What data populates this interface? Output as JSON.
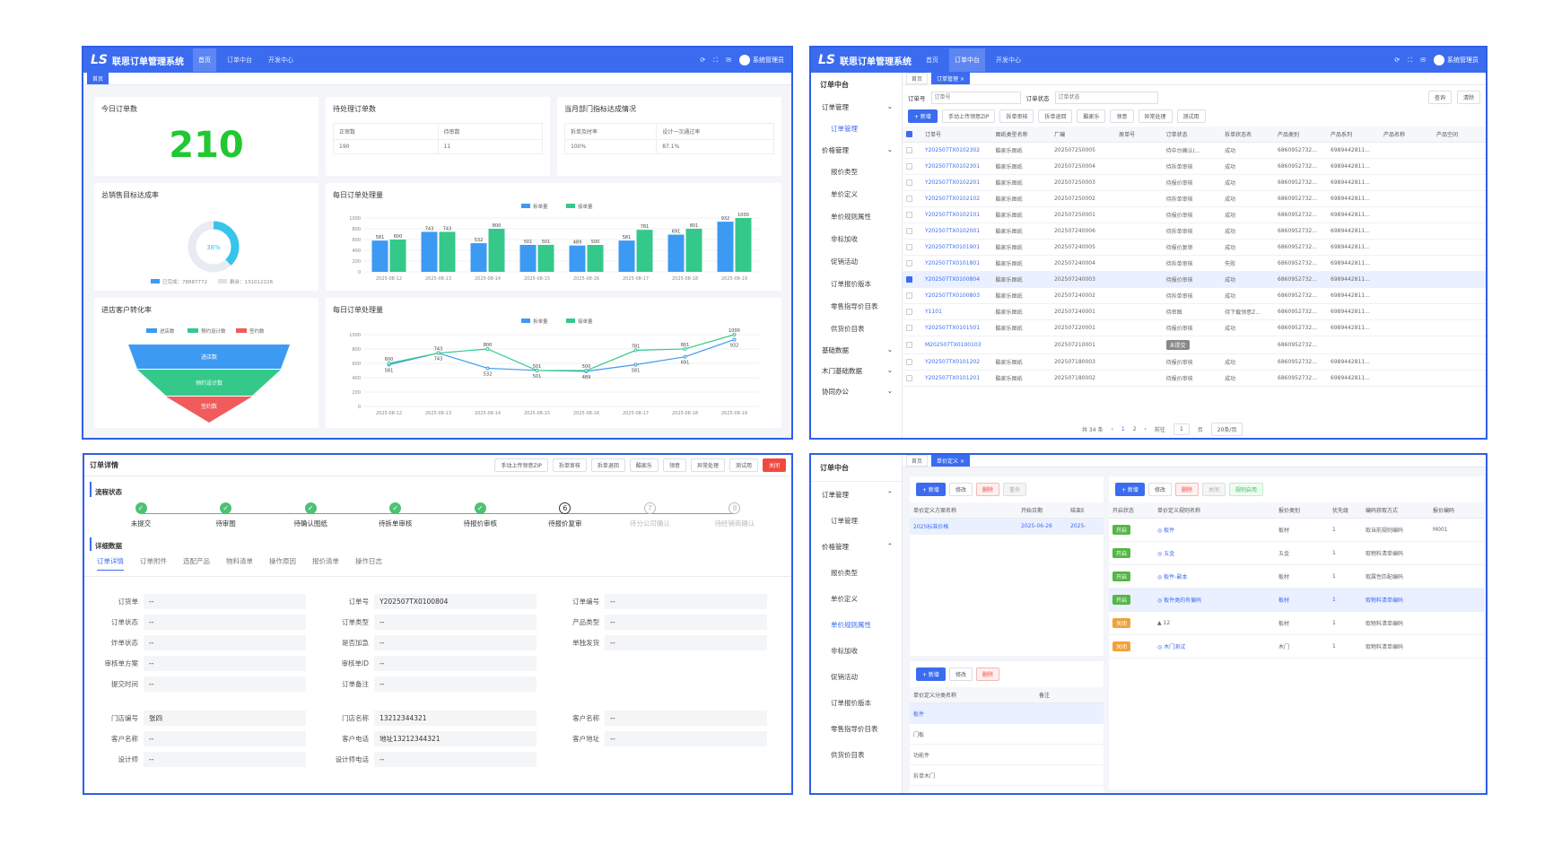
{
  "app": {
    "title": "联思订单管理系统",
    "logo": "LS",
    "user": "系统管理员",
    "nav": [
      "首页",
      "订单中台",
      "开发中心"
    ]
  },
  "p1": {
    "tab": "首页",
    "today": {
      "title": "今日订单数",
      "value": "210"
    },
    "pending": {
      "title": "待处理订单数",
      "h1": "正审数",
      "h2": "待审数",
      "v1": "190",
      "v2": "11"
    },
    "monthly": {
      "title": "当月部门指标达成情况",
      "h1": "拆单及时率",
      "h2": "设计一次通过率",
      "v1": "100%",
      "v2": "87.1%"
    },
    "rate": {
      "title": "总销售目标达成率",
      "pct": "38%",
      "legend1": "已完成：78887772",
      "legend2": "剩余：131012228"
    },
    "conv": {
      "title": "进店客户转化率",
      "legend": [
        "进店数",
        "预约设计数",
        "签约数"
      ],
      "labels": [
        "进店数",
        "预约设计数",
        "签约数"
      ]
    },
    "bar": {
      "title": "每日订单处理量"
    },
    "line": {
      "title": "每日订单处理量"
    }
  },
  "chart_data": [
    {
      "type": "bar",
      "title": "每日订单处理量",
      "categories": [
        "2025-08-12",
        "2025-08-13",
        "2025-08-14",
        "2025-08-15",
        "2025-08-16",
        "2025-08-17",
        "2025-08-18",
        "2025-08-19"
      ],
      "series": [
        {
          "name": "拆单量",
          "values": [
            581,
            743,
            532,
            501,
            489,
            581,
            691,
            932
          ]
        },
        {
          "name": "接单量",
          "values": [
            600,
            743,
            800,
            501,
            500,
            781,
            801,
            1000
          ]
        }
      ],
      "ylim": [
        0,
        1000
      ],
      "yticks": [
        0,
        200,
        400,
        600,
        800,
        1000
      ],
      "colors": [
        "#3c9af3",
        "#34c98a"
      ]
    },
    {
      "type": "line",
      "title": "每日订单处理量",
      "categories": [
        "2025-08-12",
        "2025-08-13",
        "2025-08-14",
        "2025-08-15",
        "2025-08-16",
        "2025-08-17",
        "2025-08-18",
        "2025-08-19"
      ],
      "series": [
        {
          "name": "拆单量",
          "values": [
            581,
            743,
            532,
            501,
            489,
            581,
            691,
            932
          ]
        },
        {
          "name": "接单量",
          "values": [
            600,
            743,
            800,
            501,
            500,
            781,
            801,
            1000
          ]
        }
      ],
      "ylim": [
        0,
        1000
      ],
      "yticks": [
        0,
        200,
        400,
        600,
        800,
        1000
      ],
      "colors": [
        "#3c9af3",
        "#34c98a"
      ]
    }
  ],
  "p2": {
    "side_title": "订单中台",
    "menu": [
      {
        "g": "订单管理",
        "items": [
          "订单管理"
        ]
      },
      {
        "g": "价格管理",
        "items": [
          "报价类型",
          "单价定义",
          "单价规则属性",
          "非标加收",
          "促销活动",
          "订单报价版本",
          "零售指导价目表",
          "供货价目表"
        ]
      },
      {
        "g": "基础数据",
        "items": []
      },
      {
        "g": "木门基础数据",
        "items": []
      },
      {
        "g": "协同办公",
        "items": []
      }
    ],
    "tabs": [
      "首页",
      "订单管理"
    ],
    "filter": {
      "l1": "订单号",
      "ph1": "订单号",
      "l2": "订单状态",
      "ph2": "订单状态",
      "query": "查询",
      "clear": "清除"
    },
    "toolbar": [
      "+ 新增",
      "手动上传领意ZIP",
      "拆单审核",
      "拆单退回",
      "酷家乐",
      "领意",
      "异常处理",
      "测试用"
    ],
    "cols": [
      "订单号",
      "图纸类型名称",
      "厂编",
      "原单号",
      "订单状态",
      "拆单状态名",
      "产品类别",
      "产品系列",
      "产品名称",
      "产品空间"
    ],
    "rows": [
      [
        "Y202507TX0102302",
        "酷家乐图纸",
        "202507250005",
        "",
        "待中台确认(...",
        "成功",
        "6860952732...",
        "6989442811..."
      ],
      [
        "Y202507TX0102301",
        "酷家乐图纸",
        "202507250004",
        "",
        "待拆单审核",
        "成功",
        "6860952732...",
        "6989442811..."
      ],
      [
        "Y202507TX0102201",
        "酷家乐图纸",
        "202507250003",
        "",
        "待报价审核",
        "成功",
        "6860952732...",
        "6989442811..."
      ],
      [
        "Y202507TX0102102",
        "酷家乐图纸",
        "202507250002",
        "",
        "待拆单审核",
        "成功",
        "6860952732...",
        "6989442811..."
      ],
      [
        "Y202507TX0102101",
        "酷家乐图纸",
        "202507250001",
        "",
        "待报价审核",
        "成功",
        "6860952732...",
        "6989442811..."
      ],
      [
        "Y202507TX0102001",
        "酷家乐图纸",
        "202507240006",
        "",
        "待拆单审核",
        "成功",
        "6860952732...",
        "6989442811..."
      ],
      [
        "Y202507TX0101901",
        "酷家乐图纸",
        "202507240005",
        "",
        "待报价复审",
        "成功",
        "6860952732...",
        "6989442811..."
      ],
      [
        "Y202507TX0101801",
        "酷家乐图纸",
        "202507240004",
        "",
        "待拆单审核",
        "失败",
        "6860952732...",
        "6989442811..."
      ],
      [
        "Y202507TX0100804",
        "酷家乐图纸",
        "202507240003",
        "",
        "待报价审核",
        "成功",
        "6860952732...",
        "6989442811..."
      ],
      [
        "Y202507TX0100803",
        "酷家乐图纸",
        "202507240002",
        "",
        "待拆单审核",
        "成功",
        "6860952732...",
        "6989442811..."
      ],
      [
        "Y1101",
        "酷家乐图纸",
        "202507240001",
        "",
        "待审图",
        "待下载领意Z...",
        "6860952732...",
        "6989442811..."
      ],
      [
        "Y202507TX0101501",
        "酷家乐图纸",
        "202507220001",
        "",
        "待报价审核",
        "成功",
        "6860952732...",
        "6989442811..."
      ],
      [
        "M202507TX0100103",
        "",
        "202507210001",
        "",
        "未提交",
        "",
        "6860952732...",
        ""
      ],
      [
        "Y202507TX0101202",
        "酷家乐图纸",
        "202507180003",
        "",
        "待报价审核",
        "成功",
        "6860952732...",
        "6989442811..."
      ],
      [
        "Y202507TX0101201",
        "酷家乐图纸",
        "202507180002",
        "",
        "待报价审核",
        "成功",
        "6860952732...",
        "6989442811..."
      ]
    ],
    "pager": {
      "total": "共 34 条",
      "p1": "1",
      "p2": "2",
      "goto": "前往",
      "page": "1",
      "unit": "页",
      "size": "20条/页"
    }
  },
  "p3": {
    "title": "订单详情",
    "toolbar": [
      "手动上传领意ZIP",
      "拆单审核",
      "拆单退回",
      "酷家乐",
      "领意",
      "异常处理",
      "测试用"
    ],
    "close": "关闭",
    "flow_title": "流程状态",
    "steps": [
      "未提交",
      "待审图",
      "待确认图纸",
      "待拆单审核",
      "待报价审核",
      "待报价复审",
      "待分公司确认",
      "待经销商确认"
    ],
    "detail_title": "详细数据",
    "tabs": [
      "订单详情",
      "订单附件",
      "选配产品",
      "物料清单",
      "操作原因",
      "报价清单",
      "操作日志"
    ],
    "f": {
      "a": [
        [
          "订货单",
          "--"
        ],
        [
          "订单状态",
          "--"
        ],
        [
          "炸单状态",
          "--"
        ],
        [
          "审核单方案",
          "--"
        ],
        [
          "提交时间",
          "--"
        ]
      ],
      "b": [
        [
          "订单号",
          "Y202507TX0100804"
        ],
        [
          "订单类型",
          "--"
        ],
        [
          "是否加急",
          "--"
        ],
        [
          "审核单ID",
          "--"
        ],
        [
          "订单备注",
          "--"
        ]
      ],
      "c": [
        [
          "订单编号",
          "--"
        ],
        [
          "产品类型",
          "--"
        ],
        [
          "单独发货",
          "--"
        ]
      ],
      "d": [
        [
          "门店编号",
          "张四"
        ],
        [
          "客户名称",
          "--"
        ],
        [
          "设计师",
          "--"
        ]
      ],
      "e": [
        [
          "门店名称",
          "13212344321"
        ],
        [
          "客户电话",
          "地址13212344321"
        ],
        [
          "设计师电话",
          "--"
        ]
      ],
      "g": [
        [
          "客户名称",
          "--"
        ],
        [
          "客户地址",
          "--"
        ]
      ]
    }
  },
  "p4": {
    "side_title": "订单中台",
    "menu": [
      [
        "订单管理",
        true
      ],
      [
        "订单管理",
        false
      ],
      [
        "价格管理",
        true
      ],
      [
        "报价类型",
        false
      ],
      [
        "单价定义",
        false
      ],
      [
        "单价规则属性",
        false
      ],
      [
        "非标加收",
        false
      ],
      [
        "促销活动",
        false
      ],
      [
        "订单报价版本",
        false
      ],
      [
        "零售指导价目表",
        false
      ],
      [
        "供货价目表",
        false
      ]
    ],
    "tabs": [
      "首页",
      "单价定义"
    ],
    "lt_btns": [
      "+ 新增",
      "修改",
      "删除",
      "重命"
    ],
    "lt_cols": [
      "单价定义方案名称",
      "开始日期",
      "结束E"
    ],
    "lt_row": [
      "2025标准价格",
      "2025-06-26",
      "2025-"
    ],
    "lb_btns": [
      "+ 新增",
      "修改",
      "删除"
    ],
    "lb_cols": [
      "单价定义分类名称",
      "备注"
    ],
    "lb_rows": [
      "板件",
      "门板",
      "功能件",
      "拆单木门"
    ],
    "rt_btns": [
      "+ 新增",
      "修改",
      "删除",
      "关闭",
      "规则启用"
    ],
    "rt_cols": [
      "开启状态",
      "单价定义规则名称",
      "报价类别",
      "优先级",
      "编码获取方式",
      "报价编码"
    ],
    "rt_rows": [
      {
        "st": "开启",
        "on": true,
        "name": "板件",
        "cat": "板材",
        "pri": "1",
        "way": "取当前规则编码",
        "code": "M001",
        "icon": "circle"
      },
      {
        "st": "开启",
        "on": true,
        "name": "五金",
        "cat": "五金",
        "pri": "1",
        "way": "取物料清单编码",
        "code": "",
        "icon": "circle"
      },
      {
        "st": "开启",
        "on": true,
        "name": "板件-副本",
        "cat": "板材",
        "pri": "1",
        "way": "取属性匹配编码",
        "code": "",
        "icon": "circle"
      },
      {
        "st": "开启",
        "on": true,
        "name": "板件类的有偏码",
        "cat": "板材",
        "pri": "1",
        "way": "取物料清单编码",
        "code": "",
        "icon": "circle"
      },
      {
        "st": "关闭",
        "on": false,
        "name": "12",
        "cat": "板材",
        "pri": "1",
        "way": "取物料清单编码",
        "code": "",
        "icon": "warn"
      },
      {
        "st": "关闭",
        "on": false,
        "name": "木门测试",
        "cat": "木门",
        "pri": "1",
        "way": "取物料清单编码",
        "code": "",
        "icon": "circle"
      }
    ]
  }
}
